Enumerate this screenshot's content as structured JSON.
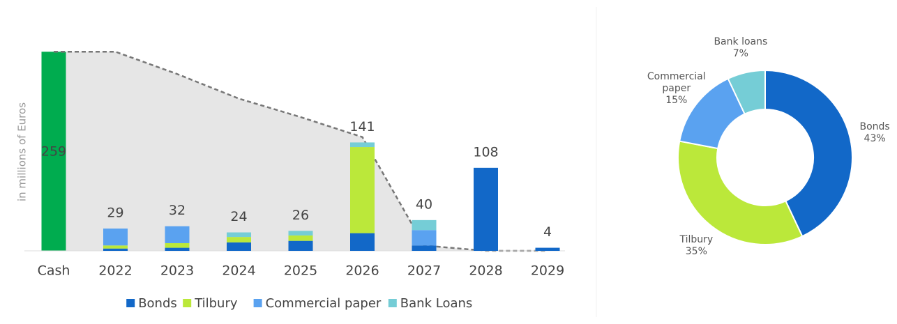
{
  "chart_data": [
    {
      "type": "stacked-bar",
      "y_label": "in millions of Euros",
      "categories": [
        "Cash",
        "2022",
        "2023",
        "2024",
        "2025",
        "2026",
        "2027",
        "2028",
        "2029"
      ],
      "cash_value": 259,
      "cash_color": "#00ac4f",
      "series": [
        {
          "name": "Bonds",
          "color": "#1268c8",
          "values": [
            null,
            3,
            4,
            11,
            13,
            23,
            7,
            108,
            4
          ]
        },
        {
          "name": "Tilbury",
          "color": "#bbe83a",
          "values": [
            null,
            4,
            6,
            7,
            7,
            112,
            0,
            0,
            0
          ]
        },
        {
          "name": "Commercial paper",
          "color": "#5aa2f0",
          "values": [
            null,
            22,
            22,
            0,
            0,
            0,
            20,
            0,
            0
          ]
        },
        {
          "name": "Bank Loans",
          "color": "#75cdd6",
          "values": [
            null,
            0,
            0,
            6,
            6,
            6,
            13,
            0,
            0
          ]
        }
      ],
      "totals": [
        null,
        29,
        32,
        24,
        26,
        141,
        40,
        108,
        4
      ],
      "cash_line": [
        259,
        259,
        230,
        198,
        174,
        148,
        7,
        0,
        0
      ],
      "ylim": [
        0,
        300
      ]
    },
    {
      "type": "donut",
      "categories": [
        "Bonds",
        "Tilbury",
        "Commercial paper",
        "Bank loans"
      ],
      "values": [
        43,
        35,
        15,
        7
      ],
      "value_labels": [
        "43%",
        "35%",
        "15%",
        "7%"
      ],
      "colors": [
        "#1268c8",
        "#bbe83a",
        "#5aa2f0",
        "#75cdd6"
      ]
    }
  ]
}
